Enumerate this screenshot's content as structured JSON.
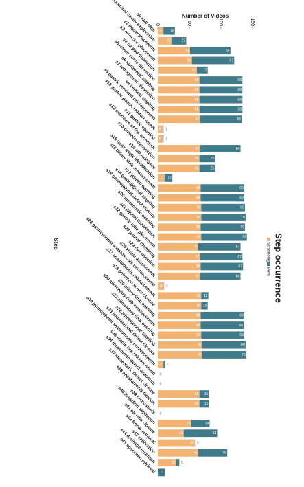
{
  "chart_data": {
    "type": "bar",
    "stacked": true,
    "title": "Step occurrence",
    "xlabel": "Step",
    "ylabel": "Number of Videos",
    "categories": [
      "s0 null step",
      "s1 abdominal cavity exploration",
      "s2 trocar placement",
      "s3 retractor placement",
      "s4 fat pad dissection",
      "s5 lesser curve dissection",
      "s6 horizontal stapling",
      "s7 retrogastric dissection",
      "s8 vertical stapling",
      "s9 gastric remnant reinforcement",
      "s10 gastric pouch reinforcement",
      "s11 gastric opening",
      "s12 exposure of the omentum",
      "s13 omental transection",
      "s14 adhesiolysis",
      "s15 treitz angle identification",
      "s16 biliary limb measurement",
      "s17 jejunal opening",
      "s18 gastrojejunal stapling",
      "s19 gastrojejunal defect closure",
      "s20 mesenteric opening",
      "s21 jejunal transection",
      "s22 gastric tube placement",
      "s23 jejunal clamping",
      "s24 dye injection",
      "s25 visual assessment",
      "s26 gastrojejunal anastomosis reinforcement",
      "s27 anastomosis reinforcement",
      "s28 peterson space closure",
      "s29 biliary limb opening",
      "s30 alimentary limb measurement",
      "s31 alimentary limb opening",
      "s32 jejunojejunal stapling",
      "s33 jejunojejunal defect closure",
      "s34 jejunojejunal anastomosis reinforcement",
      "s35 staple line reinforcement",
      "s36 mesenteric defect exposure",
      "s37 mesenteric defect closure",
      "s38 anastomosis fixation",
      "s39 hemostasis",
      "s40 irrigation aspiration",
      "s41 parietal closure",
      "s42 trocar removal",
      "s43 calibration",
      "s44 drainage insertion",
      "s45 specimen retrieval"
    ],
    "series": [
      {
        "name": "Strasbourg",
        "color": "#f2b272",
        "values": [
          9,
          22,
          51,
          54,
          62,
          66,
          66,
          66,
          66,
          67,
          8,
          8,
          67,
          66,
          66,
          11,
          68,
          68,
          69,
          69,
          68,
          69,
          64,
          67,
          68,
          67,
          10,
          69,
          69,
          68,
          68,
          69,
          70,
          70,
          9,
          0,
          0,
          66,
          66,
          0,
          53,
          41,
          59,
          64,
          29,
          0
        ]
      },
      {
        "name": "Bern",
        "color": "#3f7b8b",
        "values": [
          18,
          23,
          64,
          67,
          17,
          68,
          68,
          68,
          68,
          66,
          1,
          1,
          64,
          25,
          25,
          12,
          69,
          69,
          69,
          70,
          70,
          72,
          67,
          67,
          67,
          64,
          0,
          11,
          10,
          69,
          68,
          68,
          69,
          70,
          2,
          0,
          0,
          15,
          15,
          0,
          29,
          53,
          0,
          46,
          5,
          11
        ]
      }
    ],
    "ylim": [
      0,
      150
    ],
    "yticks": [
      0,
      50,
      100,
      150
    ],
    "legend": "top"
  }
}
